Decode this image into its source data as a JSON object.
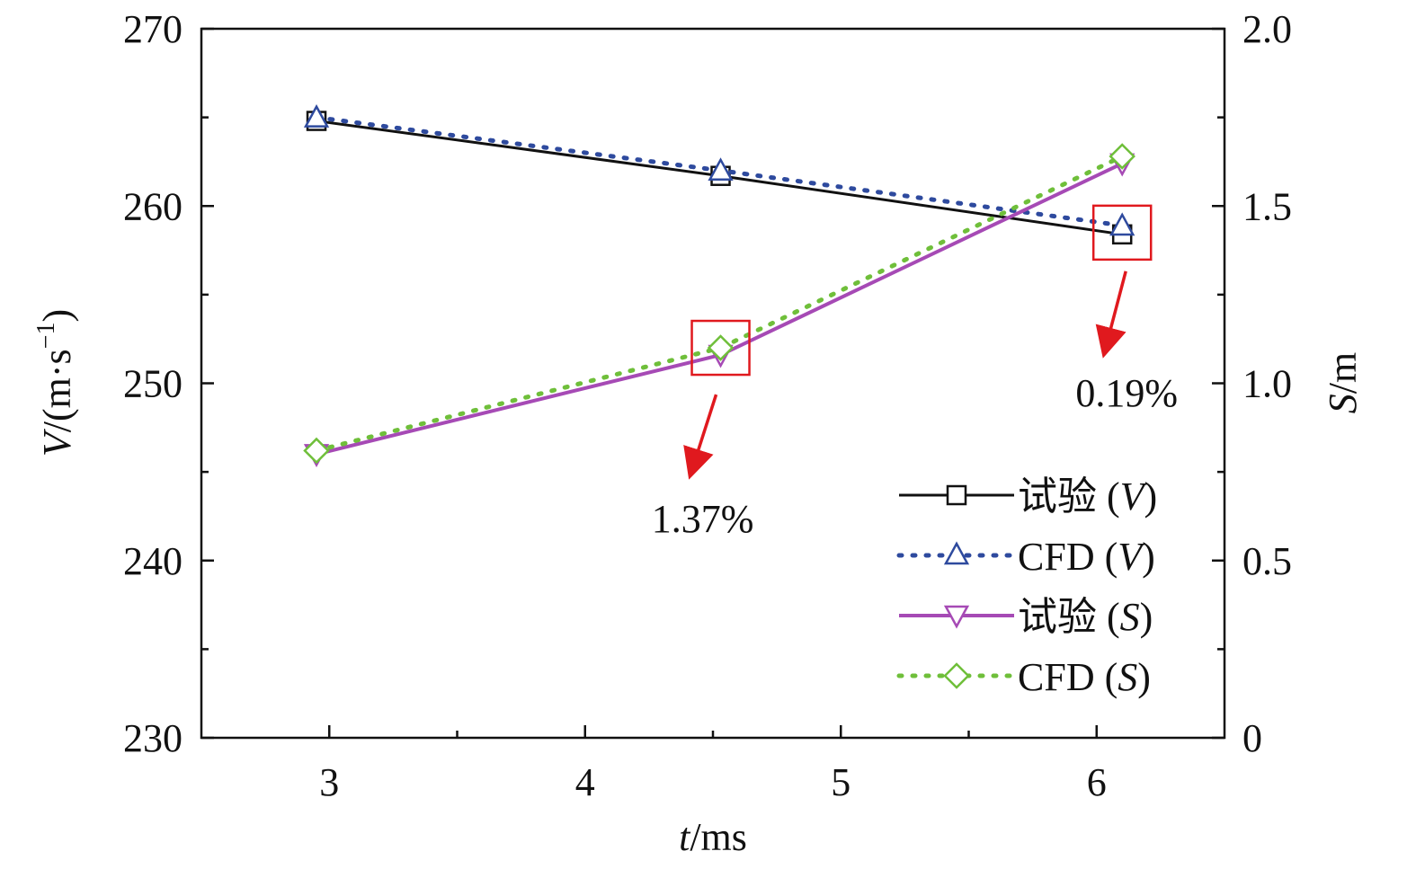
{
  "chart_data": {
    "type": "line",
    "x_axis": {
      "label_var": "t",
      "label_unit": "/ms",
      "range": [
        2.5,
        6.5
      ],
      "major_ticks": [
        3,
        4,
        5,
        6
      ],
      "minor_ticks": [
        3.5,
        4.5,
        5.5
      ],
      "tick_labels": [
        "3",
        "4",
        "5",
        "6"
      ]
    },
    "y_left": {
      "label_var": "V",
      "label_unit": "/(m·s",
      "label_sup": "−1",
      "label_close": ")",
      "range": [
        230,
        270
      ],
      "major_ticks": [
        230,
        240,
        250,
        260,
        270
      ],
      "minor_ticks": [
        235,
        245,
        255,
        265
      ],
      "tick_labels": [
        "230",
        "240",
        "250",
        "260",
        "270"
      ]
    },
    "y_right": {
      "label_var": "S",
      "label_unit": "/m",
      "range": [
        0,
        2.0
      ],
      "major_ticks": [
        0,
        0.5,
        1.0,
        1.5,
        2.0
      ],
      "minor_ticks": [
        0.25,
        0.75,
        1.25,
        1.75
      ],
      "tick_labels": [
        "0",
        "0.5",
        "1.0",
        "1.5",
        "2.0"
      ]
    },
    "series": [
      {
        "name_main": "试验 (",
        "name_var": "V",
        "name_close": ")",
        "axis": "left",
        "x": [
          2.95,
          4.53,
          6.1
        ],
        "y": [
          264.8,
          261.7,
          258.4
        ],
        "line_style": "solid",
        "marker": "square",
        "color": "#111111"
      },
      {
        "name_main": "CFD (",
        "name_var": "V",
        "name_close": ")",
        "axis": "left",
        "x": [
          2.95,
          4.53,
          6.1
        ],
        "y": [
          265.0,
          262.0,
          258.9
        ],
        "line_style": "dotted",
        "marker": "triangle-up",
        "color": "#2e4a9e"
      },
      {
        "name_main": "试验 (",
        "name_var": "S",
        "name_close": ")",
        "axis": "right",
        "x": [
          2.95,
          4.53,
          6.1
        ],
        "y": [
          0.8,
          1.08,
          1.62
        ],
        "line_style": "solid",
        "marker": "triangle-down",
        "color": "#a64ab5"
      },
      {
        "name_main": "CFD (",
        "name_var": "S",
        "name_close": ")",
        "axis": "right",
        "x": [
          2.95,
          4.53,
          6.1
        ],
        "y": [
          0.81,
          1.1,
          1.64
        ],
        "line_style": "dotted",
        "marker": "diamond",
        "color": "#6fbf3a"
      }
    ],
    "annotations": [
      {
        "text": "1.37%",
        "box_x": 4.53,
        "box_y_right": 1.1,
        "color": "#e0191e"
      },
      {
        "text": "0.19%",
        "box_x": 6.1,
        "box_y_left": 258.6,
        "color": "#e0191e"
      }
    ],
    "legend": {
      "position": "bottom-right"
    },
    "grid": false
  }
}
